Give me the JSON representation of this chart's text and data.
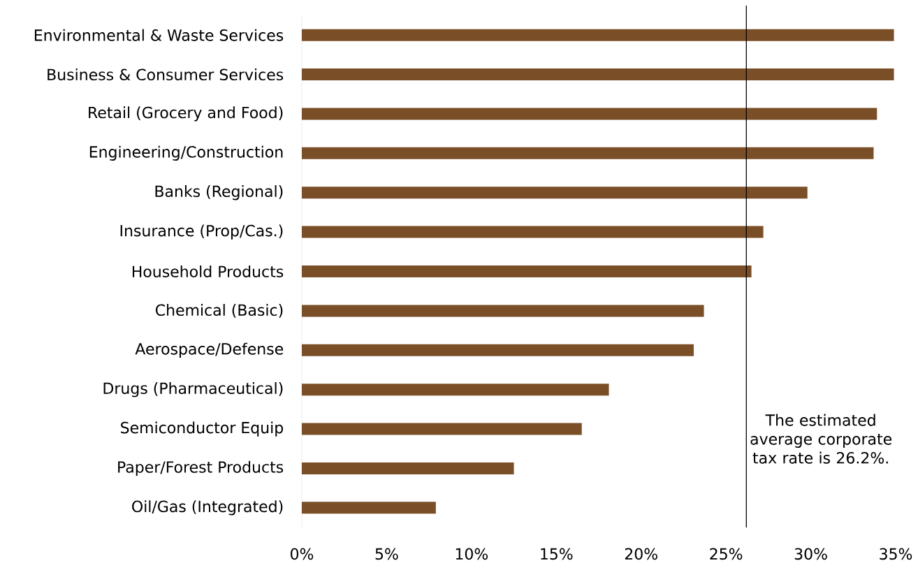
{
  "chart_data": {
    "type": "bar",
    "orientation": "horizontal",
    "color": "#7a4f28",
    "categories": [
      "Environmental & Waste Services",
      "Business & Consumer Services",
      "Retail (Grocery and Food)",
      "Engineering/Construction",
      "Banks (Regional)",
      "Insurance (Prop/Cas.)",
      "Household Products",
      "Chemical (Basic)",
      "Aerospace/Defense",
      "Drugs (Pharmaceutical)",
      "Semiconductor Equip",
      "Paper/Forest Products",
      "Oil/Gas (Integrated)"
    ],
    "values": [
      34.9,
      34.9,
      33.9,
      33.7,
      29.8,
      27.2,
      26.5,
      23.7,
      23.1,
      18.1,
      16.5,
      12.5,
      7.9
    ],
    "xlim": [
      0,
      35
    ],
    "xticks": [
      {
        "value": 0,
        "label": "0%"
      },
      {
        "value": 5,
        "label": "5%"
      },
      {
        "value": 10,
        "label": "10%"
      },
      {
        "value": 15,
        "label": "15%"
      },
      {
        "value": 20,
        "label": "20%"
      },
      {
        "value": 25,
        "label": "25%"
      },
      {
        "value": 30,
        "label": "30%"
      },
      {
        "value": 35,
        "label": "35%"
      }
    ],
    "grid": false,
    "ref_lines": [
      {
        "axis": "x",
        "value": 26.2,
        "color": "#000000",
        "label": "The estimated average corporate tax rate is 26.2%."
      }
    ]
  }
}
